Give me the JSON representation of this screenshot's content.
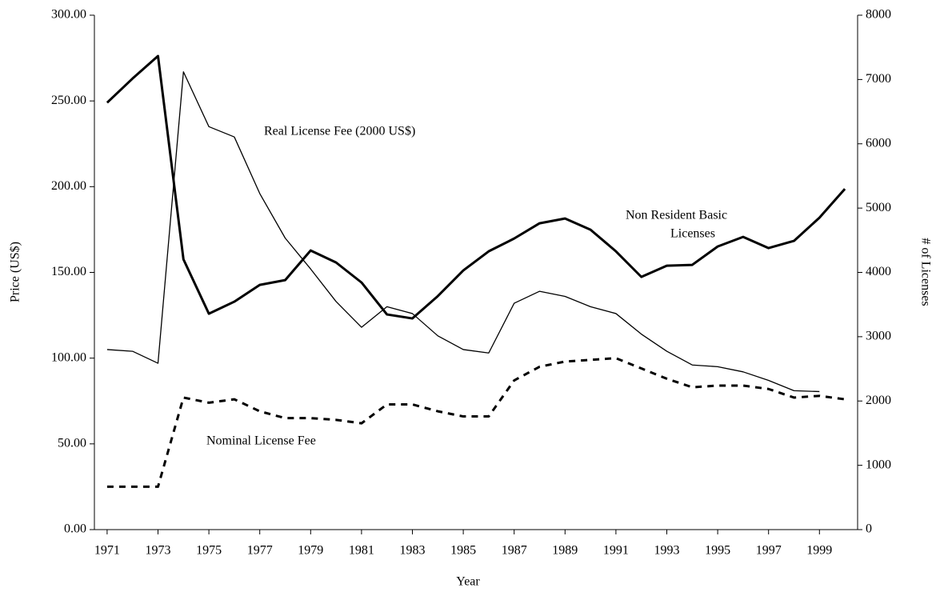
{
  "chart_data": {
    "type": "line",
    "xlabel": "Year",
    "ylabel": "Price (US$)",
    "y2label": "# of Licenses",
    "annotations": [
      "Real License Fee (2000 US$)",
      "Non Resident Basic",
      "Licenses",
      "Nominal License Fee"
    ],
    "x": [
      1971,
      1972,
      1973,
      1974,
      1975,
      1976,
      1977,
      1978,
      1979,
      1980,
      1981,
      1982,
      1983,
      1984,
      1985,
      1986,
      1987,
      1988,
      1989,
      1990,
      1991,
      1992,
      1993,
      1994,
      1995,
      1996,
      1997,
      1998,
      1999,
      2000
    ],
    "xlim": [
      1970.5,
      2000.5
    ],
    "xticks": [
      1971,
      1973,
      1975,
      1977,
      1979,
      1981,
      1983,
      1985,
      1987,
      1989,
      1991,
      1993,
      1995,
      1997,
      1999
    ],
    "ylim": [
      0,
      300
    ],
    "yticks": [
      {
        "value": 0,
        "label": "0.00"
      },
      {
        "value": 50,
        "label": "50.00"
      },
      {
        "value": 100,
        "label": "100.00"
      },
      {
        "value": 150,
        "label": "150.00"
      },
      {
        "value": 200,
        "label": "200.00"
      },
      {
        "value": 250,
        "label": "250.00"
      },
      {
        "value": 300,
        "label": "300.00"
      }
    ],
    "y2lim": [
      0,
      8000
    ],
    "y2ticks": [
      0,
      1000,
      2000,
      3000,
      4000,
      5000,
      6000,
      7000,
      8000
    ],
    "series": [
      {
        "color": "#000000",
        "style": "thin",
        "values": [
          105,
          104,
          97,
          267,
          235,
          229,
          196,
          170,
          152,
          133,
          118,
          130,
          126,
          113,
          105,
          103,
          132,
          139,
          136,
          130,
          126,
          114,
          104,
          96,
          95,
          92,
          87,
          81,
          80.5,
          null
        ]
      },
      {
        "color": "#000000",
        "style": "thick",
        "axis": "y2",
        "values": [
          6640,
          7015,
          7365,
          4204,
          3358,
          3545,
          3806,
          3880,
          4341,
          4154,
          3843,
          3346,
          3284,
          3632,
          4030,
          4328,
          4527,
          4764,
          4838,
          4664,
          4328,
          3930,
          4104,
          4117,
          4403,
          4552,
          4378,
          4490,
          4851,
          5299
        ]
      },
      {
        "color": "#000000",
        "style": "dashed",
        "values": [
          25,
          25,
          25,
          77,
          74,
          76,
          69,
          65,
          65,
          64,
          62,
          73,
          73,
          69,
          66,
          66,
          87,
          95,
          98,
          99,
          100,
          94,
          88,
          83,
          84,
          84,
          82,
          77,
          78,
          76
        ]
      }
    ]
  }
}
